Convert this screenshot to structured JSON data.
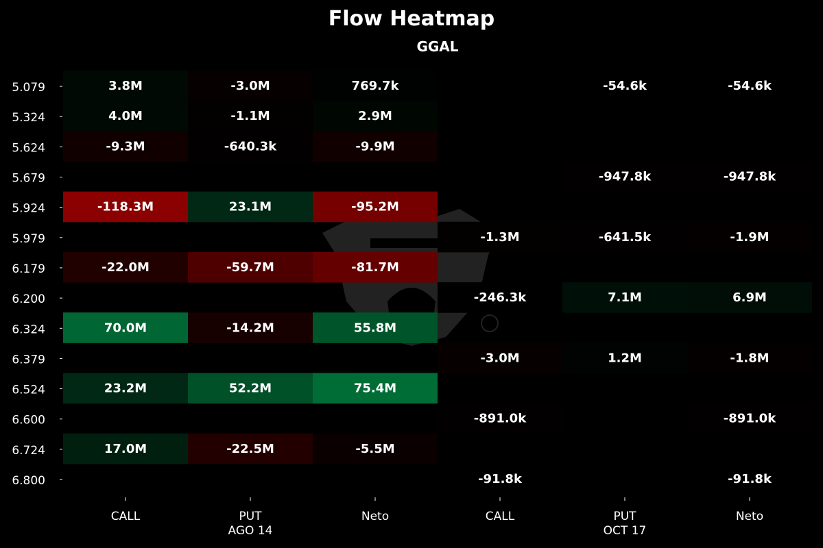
{
  "chart_data": {
    "type": "heatmap",
    "title": "Flow Heatmap",
    "subtitle": "GGAL",
    "row_labels": [
      "5.079",
      "5.324",
      "5.624",
      "5.679",
      "5.924",
      "5.979",
      "6.179",
      "6.200",
      "6.324",
      "6.379",
      "6.524",
      "6.600",
      "6.724",
      "6.800"
    ],
    "column_groups": [
      {
        "expiry": "AGO 14",
        "columns": [
          "CALL",
          "PUT",
          "Neto"
        ]
      },
      {
        "expiry": "OCT 17",
        "columns": [
          "CALL",
          "PUT",
          "Neto"
        ]
      }
    ],
    "columns": [
      "CALL",
      "PUT",
      "Neto",
      "CALL",
      "PUT",
      "Neto"
    ],
    "values": [
      [
        3800000,
        -3000000,
        769700,
        null,
        -54600,
        -54600
      ],
      [
        4000000,
        -1100000,
        2900000,
        null,
        null,
        null
      ],
      [
        -9300000,
        -640300,
        -9900000,
        null,
        null,
        null
      ],
      [
        null,
        null,
        null,
        null,
        -947800,
        -947800
      ],
      [
        -118300000,
        23100000,
        -95200000,
        null,
        null,
        null
      ],
      [
        null,
        null,
        null,
        -1300000,
        -641500,
        -1900000
      ],
      [
        -22000000,
        -59700000,
        -81700000,
        null,
        null,
        null
      ],
      [
        null,
        null,
        null,
        -246300,
        7100000,
        6900000
      ],
      [
        70000000,
        -14200000,
        55800000,
        null,
        null,
        null
      ],
      [
        null,
        null,
        null,
        -3000000,
        1200000,
        -1800000
      ],
      [
        23200000,
        52200000,
        75400000,
        null,
        null,
        null
      ],
      [
        null,
        null,
        null,
        -891000,
        null,
        -891000
      ],
      [
        17000000,
        -22500000,
        -5500000,
        null,
        null,
        null
      ],
      [
        null,
        null,
        null,
        -91800,
        null,
        -91800
      ]
    ],
    "cell_labels": [
      [
        "3.8M",
        "-3.0M",
        "769.7k",
        "",
        "-54.6k",
        "-54.6k"
      ],
      [
        "4.0M",
        "-1.1M",
        "2.9M",
        "",
        "",
        ""
      ],
      [
        "-9.3M",
        "-640.3k",
        "-9.9M",
        "",
        "",
        ""
      ],
      [
        "",
        "",
        "",
        "",
        "-947.8k",
        "-947.8k"
      ],
      [
        "-118.3M",
        "23.1M",
        "-95.2M",
        "",
        "",
        ""
      ],
      [
        "",
        "",
        "",
        "-1.3M",
        "-641.5k",
        "-1.9M"
      ],
      [
        "-22.0M",
        "-59.7M",
        "-81.7M",
        "",
        "",
        ""
      ],
      [
        "",
        "",
        "",
        "-246.3k",
        "7.1M",
        "6.9M"
      ],
      [
        "70.0M",
        "-14.2M",
        "55.8M",
        "",
        "",
        ""
      ],
      [
        "",
        "",
        "",
        "-3.0M",
        "1.2M",
        "-1.8M"
      ],
      [
        "23.2M",
        "52.2M",
        "75.4M",
        "",
        "",
        ""
      ],
      [
        "",
        "",
        "",
        "-891.0k",
        "",
        "-891.0k"
      ],
      [
        "17.0M",
        "-22.5M",
        "-5.5M",
        "",
        "",
        ""
      ],
      [
        "",
        "",
        "",
        "-91.8k",
        "",
        "-91.8k"
      ]
    ],
    "colors": {
      "positive": "#00a050",
      "negative": "#8b0000",
      "background": "#000000"
    },
    "grid": false,
    "legend": "none"
  }
}
